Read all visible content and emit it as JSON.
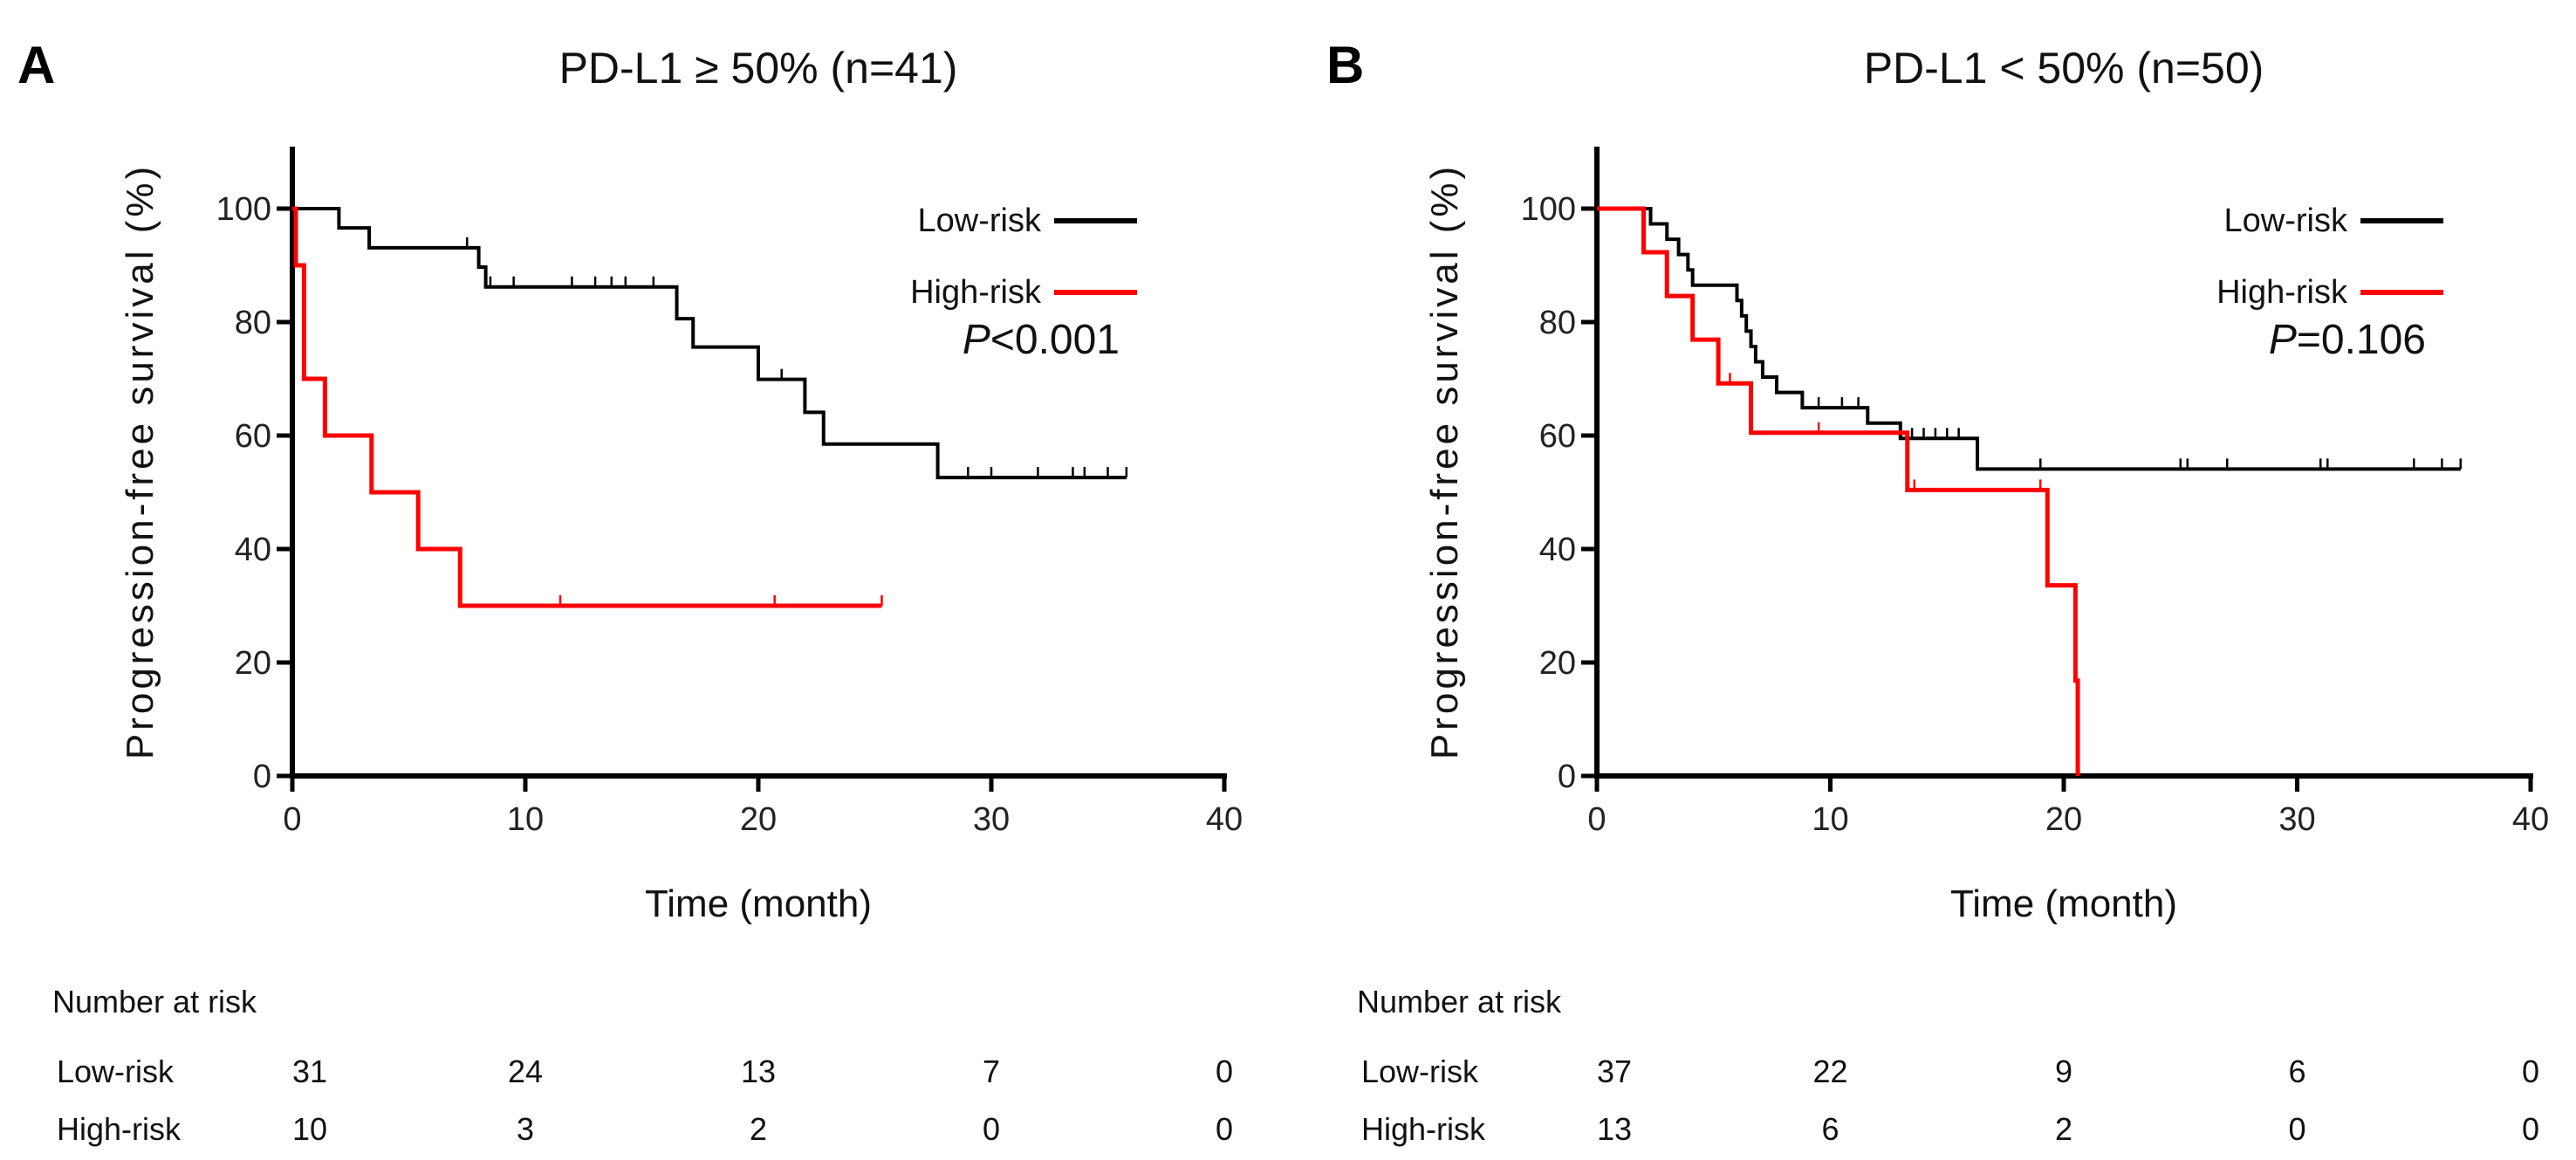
{
  "chart_data": [
    {
      "type": "line",
      "panel_label": "A",
      "title": "PD-L1 ≥ 50% (n=41)",
      "xlabel": "Time (month)",
      "ylabel": "Progression-free survival (%)",
      "xlim": [
        0,
        40
      ],
      "ylim": [
        0,
        100
      ],
      "xticks": [
        "0",
        "10",
        "20",
        "30",
        "40"
      ],
      "yticks": [
        "0",
        "20",
        "40",
        "60",
        "80",
        "100"
      ],
      "legend_position": "top-right",
      "p_value": {
        "italic": "P",
        "rest": "<0.001"
      },
      "series": [
        {
          "name": "Low-risk",
          "color": "#000000",
          "steps": [
            [
              0,
              100
            ],
            [
              2,
              96.6
            ],
            [
              3.3,
              93.1
            ],
            [
              8,
              89.7
            ],
            [
              8.3,
              86.2
            ],
            [
              16.5,
              80.6
            ],
            [
              17.2,
              75.6
            ],
            [
              20,
              69.9
            ],
            [
              22,
              64.1
            ],
            [
              22.8,
              58.5
            ],
            [
              27.7,
              52.6
            ],
            [
              35.8,
              52.6
            ]
          ],
          "censored": [
            7.5,
            8.5,
            9.5,
            12,
            13,
            13.7,
            14.3,
            15.5,
            21,
            29,
            30,
            32,
            33.5,
            34,
            35,
            35.8
          ]
        },
        {
          "name": "High-risk",
          "color": "#ff0000",
          "steps": [
            [
              0,
              100
            ],
            [
              0.15,
              90
            ],
            [
              0.5,
              70
            ],
            [
              1.4,
              60
            ],
            [
              3.4,
              50
            ],
            [
              5.4,
              40
            ],
            [
              7.2,
              30
            ],
            [
              25.3,
              30
            ]
          ],
          "censored": [
            11.5,
            20.7,
            25.3
          ]
        }
      ],
      "risk_table": {
        "title": "Number at risk",
        "rows": [
          {
            "label": "Low-risk",
            "values": [
              "31",
              "24",
              "13",
              "7",
              "0"
            ]
          },
          {
            "label": "High-risk",
            "values": [
              "10",
              "3",
              "2",
              "0",
              "0"
            ]
          }
        ]
      }
    },
    {
      "type": "line",
      "panel_label": "B",
      "title": "PD-L1 < 50% (n=50)",
      "xlabel": "Time (month)",
      "ylabel": "Progression-free survival (%)",
      "xlim": [
        0,
        40
      ],
      "ylim": [
        0,
        100
      ],
      "xticks": [
        "0",
        "10",
        "20",
        "30",
        "40"
      ],
      "yticks": [
        "0",
        "20",
        "40",
        "60",
        "80",
        "100"
      ],
      "legend_position": "top-right",
      "p_value": {
        "italic": "P",
        "rest": "=0.106"
      },
      "series": [
        {
          "name": "Low-risk",
          "color": "#000000",
          "steps": [
            [
              0,
              100
            ],
            [
              2.3,
              97.3
            ],
            [
              3,
              94.6
            ],
            [
              3.5,
              91.9
            ],
            [
              3.9,
              89.2
            ],
            [
              4.1,
              86.5
            ],
            [
              6,
              83.8
            ],
            [
              6.2,
              81.1
            ],
            [
              6.4,
              78.4
            ],
            [
              6.6,
              75.7
            ],
            [
              6.8,
              73
            ],
            [
              7.1,
              70.3
            ],
            [
              7.7,
              67.6
            ],
            [
              8.8,
              64.9
            ],
            [
              11.6,
              62.2
            ],
            [
              13,
              59.5
            ],
            [
              16.3,
              54.1
            ],
            [
              37,
              54.1
            ]
          ],
          "censored": [
            9.5,
            10.5,
            11.2,
            13.5,
            14,
            14.5,
            15,
            15.5,
            19,
            25,
            25.3,
            27,
            31,
            31.3,
            35,
            36.2,
            37
          ]
        },
        {
          "name": "High-risk",
          "color": "#ff0000",
          "steps": [
            [
              0,
              100
            ],
            [
              2,
              92.3
            ],
            [
              3,
              84.6
            ],
            [
              4.1,
              76.9
            ],
            [
              5.2,
              69.2
            ],
            [
              6.6,
              60.5
            ],
            [
              13.3,
              50.4
            ],
            [
              19.3,
              33.6
            ],
            [
              20.5,
              16.8
            ],
            [
              20.6,
              0
            ]
          ],
          "censored": [
            5.7,
            9.5,
            13.6,
            19
          ]
        }
      ],
      "risk_table": {
        "title": "Number at risk",
        "rows": [
          {
            "label": "Low-risk",
            "values": [
              "37",
              "22",
              "9",
              "6",
              "0"
            ]
          },
          {
            "label": "High-risk",
            "values": [
              "13",
              "6",
              "2",
              "0",
              "0"
            ]
          }
        ]
      }
    }
  ]
}
